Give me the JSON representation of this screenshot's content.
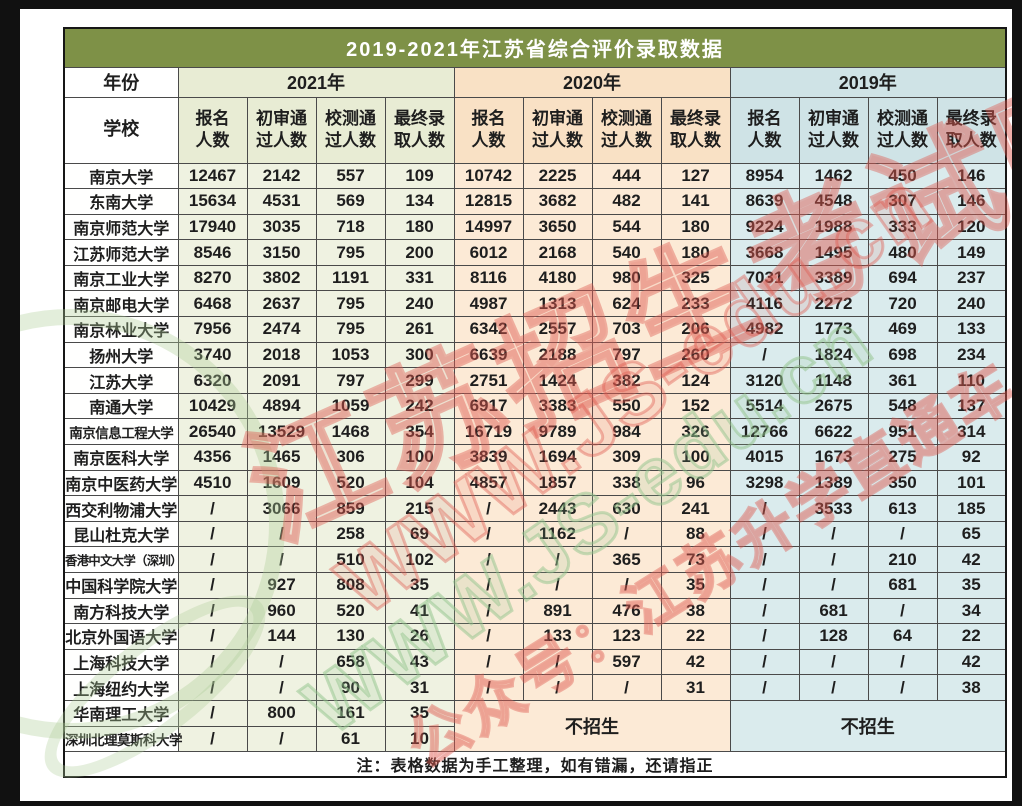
{
  "watermark": {
    "site_name": "江苏招生考试网",
    "site_url": "WWW.JS-edu.cn",
    "public_account": "公众号：江苏升学直通车"
  },
  "colors": {
    "title_bg": "#7E9147",
    "group_2021": "#EFF2E1",
    "group_2020": "#FCEAD6",
    "group_2019": "#DAEBED",
    "watermark_red": "#DE584E",
    "watermark_green": "#92C38C"
  },
  "chart_data": {
    "type": "table",
    "title": "2019-2021年江苏省综合评价录取数据",
    "year_label": "年份",
    "school_label": "学校",
    "year_groups": [
      "2021年",
      "2020年",
      "2019年"
    ],
    "metric_headers": [
      "报名\n人数",
      "初审通\n过人数",
      "校测通\n过人数",
      "最终录\n取人数"
    ],
    "no_enrollment": "不招生",
    "note": "注：表格数据为手工整理，如有错漏，还请指正",
    "rows": [
      {
        "school": "南京大学",
        "y2021": [
          "12467",
          "2142",
          "557",
          "109"
        ],
        "y2020": [
          "10742",
          "2225",
          "444",
          "127"
        ],
        "y2019": [
          "8954",
          "1462",
          "450",
          "146"
        ]
      },
      {
        "school": "东南大学",
        "y2021": [
          "15634",
          "4531",
          "569",
          "134"
        ],
        "y2020": [
          "12815",
          "3682",
          "482",
          "141"
        ],
        "y2019": [
          "8639",
          "4548",
          "307",
          "146"
        ]
      },
      {
        "school": "南京师范大学",
        "y2021": [
          "17940",
          "3035",
          "718",
          "180"
        ],
        "y2020": [
          "14997",
          "3650",
          "544",
          "180"
        ],
        "y2019": [
          "9224",
          "1988",
          "333",
          "120"
        ]
      },
      {
        "school": "江苏师范大学",
        "y2021": [
          "8546",
          "3150",
          "795",
          "200"
        ],
        "y2020": [
          "6012",
          "2168",
          "540",
          "180"
        ],
        "y2019": [
          "3668",
          "1495",
          "480",
          "149"
        ]
      },
      {
        "school": "南京工业大学",
        "y2021": [
          "8270",
          "3802",
          "1191",
          "331"
        ],
        "y2020": [
          "8116",
          "4180",
          "980",
          "325"
        ],
        "y2019": [
          "7031",
          "3389",
          "694",
          "237"
        ]
      },
      {
        "school": "南京邮电大学",
        "y2021": [
          "6468",
          "2637",
          "795",
          "240"
        ],
        "y2020": [
          "4987",
          "1313",
          "624",
          "233"
        ],
        "y2019": [
          "4116",
          "2272",
          "720",
          "240"
        ]
      },
      {
        "school": "南京林业大学",
        "y2021": [
          "7956",
          "2474",
          "795",
          "261"
        ],
        "y2020": [
          "6342",
          "2557",
          "703",
          "206"
        ],
        "y2019": [
          "4982",
          "1773",
          "469",
          "133"
        ]
      },
      {
        "school": "扬州大学",
        "y2021": [
          "3740",
          "2018",
          "1053",
          "300"
        ],
        "y2020": [
          "6639",
          "2188",
          "797",
          "260"
        ],
        "y2019": [
          "/",
          "1824",
          "698",
          "234"
        ]
      },
      {
        "school": "江苏大学",
        "y2021": [
          "6320",
          "2091",
          "797",
          "299"
        ],
        "y2020": [
          "2751",
          "1424",
          "382",
          "124"
        ],
        "y2019": [
          "3120",
          "1148",
          "361",
          "110"
        ]
      },
      {
        "school": "南通大学",
        "y2021": [
          "10429",
          "4894",
          "1059",
          "242"
        ],
        "y2020": [
          "6917",
          "3383",
          "550",
          "152"
        ],
        "y2019": [
          "5514",
          "2675",
          "548",
          "137"
        ]
      },
      {
        "school": "南京信息工程大学",
        "y2021": [
          "26540",
          "13529",
          "1468",
          "354"
        ],
        "y2020": [
          "16719",
          "9789",
          "984",
          "326"
        ],
        "y2019": [
          "12766",
          "6622",
          "951",
          "314"
        ]
      },
      {
        "school": "南京医科大学",
        "y2021": [
          "4356",
          "1465",
          "306",
          "100"
        ],
        "y2020": [
          "3839",
          "1694",
          "309",
          "100"
        ],
        "y2019": [
          "4015",
          "1673",
          "275",
          "92"
        ]
      },
      {
        "school": "南京中医药大学",
        "y2021": [
          "4510",
          "1609",
          "520",
          "104"
        ],
        "y2020": [
          "4857",
          "1857",
          "338",
          "96"
        ],
        "y2019": [
          "3298",
          "1389",
          "350",
          "101"
        ]
      },
      {
        "school": "西交利物浦大学",
        "y2021": [
          "/",
          "3066",
          "859",
          "215"
        ],
        "y2020": [
          "/",
          "2443",
          "630",
          "241"
        ],
        "y2019": [
          "/",
          "3533",
          "613",
          "185"
        ]
      },
      {
        "school": "昆山杜克大学",
        "y2021": [
          "/",
          "/",
          "258",
          "69"
        ],
        "y2020": [
          "/",
          "1162",
          "/",
          "88"
        ],
        "y2019": [
          "/",
          "/",
          "/",
          "65"
        ]
      },
      {
        "school": "香港中文大学（深圳）",
        "y2021": [
          "/",
          "/",
          "510",
          "102"
        ],
        "y2020": [
          "/",
          "/",
          "365",
          "73"
        ],
        "y2019": [
          "/",
          "/",
          "210",
          "42"
        ]
      },
      {
        "school": "中国科学院大学",
        "y2021": [
          "/",
          "927",
          "808",
          "35"
        ],
        "y2020": [
          "/",
          "/",
          "/",
          "35"
        ],
        "y2019": [
          "/",
          "/",
          "681",
          "35"
        ]
      },
      {
        "school": "南方科技大学",
        "y2021": [
          "/",
          "960",
          "520",
          "41"
        ],
        "y2020": [
          "/",
          "891",
          "476",
          "38"
        ],
        "y2019": [
          "/",
          "681",
          "/",
          "34"
        ]
      },
      {
        "school": "北京外国语大学",
        "y2021": [
          "/",
          "144",
          "130",
          "26"
        ],
        "y2020": [
          "/",
          "133",
          "123",
          "22"
        ],
        "y2019": [
          "/",
          "128",
          "64",
          "22"
        ]
      },
      {
        "school": "上海科技大学",
        "y2021": [
          "/",
          "/",
          "658",
          "43"
        ],
        "y2020": [
          "/",
          "/",
          "597",
          "42"
        ],
        "y2019": [
          "/",
          "/",
          "/",
          "42"
        ]
      },
      {
        "school": "上海纽约大学",
        "y2021": [
          "/",
          "/",
          "90",
          "31"
        ],
        "y2020": [
          "/",
          "/",
          "/",
          "31"
        ],
        "y2019": [
          "/",
          "/",
          "/",
          "38"
        ]
      },
      {
        "school": "华南理工大学",
        "y2021": [
          "/",
          "800",
          "161",
          "35"
        ],
        "y2020": null,
        "y2019": null
      },
      {
        "school": "深圳北理莫斯科大学",
        "y2021": [
          "/",
          "/",
          "61",
          "10"
        ],
        "y2020": null,
        "y2019": null
      }
    ]
  }
}
